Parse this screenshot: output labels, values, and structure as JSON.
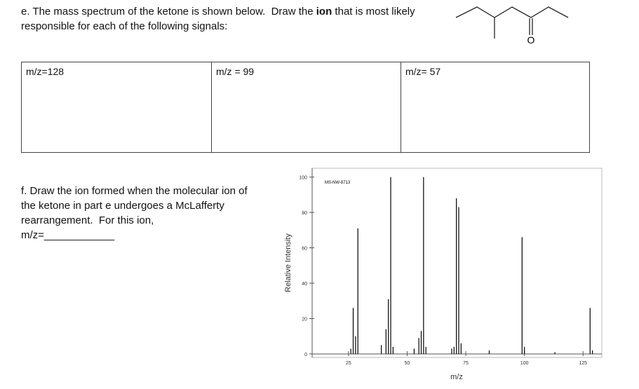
{
  "part_e": {
    "line1_start": "e. The mass spectrum of the ketone is shown below.  Draw the ",
    "line1_bold": "ion",
    "line1_end": " that is most likely",
    "line2": "responsible for each of the following signals:"
  },
  "structure": {
    "atom_label": "O"
  },
  "table": {
    "cells": [
      "m/z=128",
      "m/z = 99",
      "m/z= 57"
    ]
  },
  "part_f": {
    "lines": [
      "f. Draw the ion formed when the molecular ion of",
      "the ketone in part e undergoes a McLafferty",
      "rearrangement.  For this ion,",
      "m/z=____________"
    ]
  },
  "chart_data": {
    "type": "bar",
    "title": "MS-NW-8713",
    "xlabel": "m/z",
    "ylabel": "Relative Intensity",
    "x": [
      26,
      27,
      28,
      29,
      39,
      41,
      42,
      43,
      44,
      53,
      55,
      56,
      57,
      58,
      69,
      70,
      71,
      72,
      73,
      85,
      99,
      100,
      113,
      128,
      129
    ],
    "values": [
      3,
      26,
      10,
      71,
      5,
      14,
      31,
      100,
      4,
      3,
      9,
      13,
      100,
      4,
      3,
      4,
      88,
      83,
      6,
      2,
      66,
      4,
      1,
      26,
      2
    ],
    "color": "#000000",
    "xlim": [
      9.5,
      133
    ],
    "ylim": [
      -2,
      105
    ],
    "xticks": [
      25,
      50,
      75,
      100,
      125
    ],
    "yticks": [
      0,
      20,
      40,
      60,
      80,
      100
    ]
  }
}
